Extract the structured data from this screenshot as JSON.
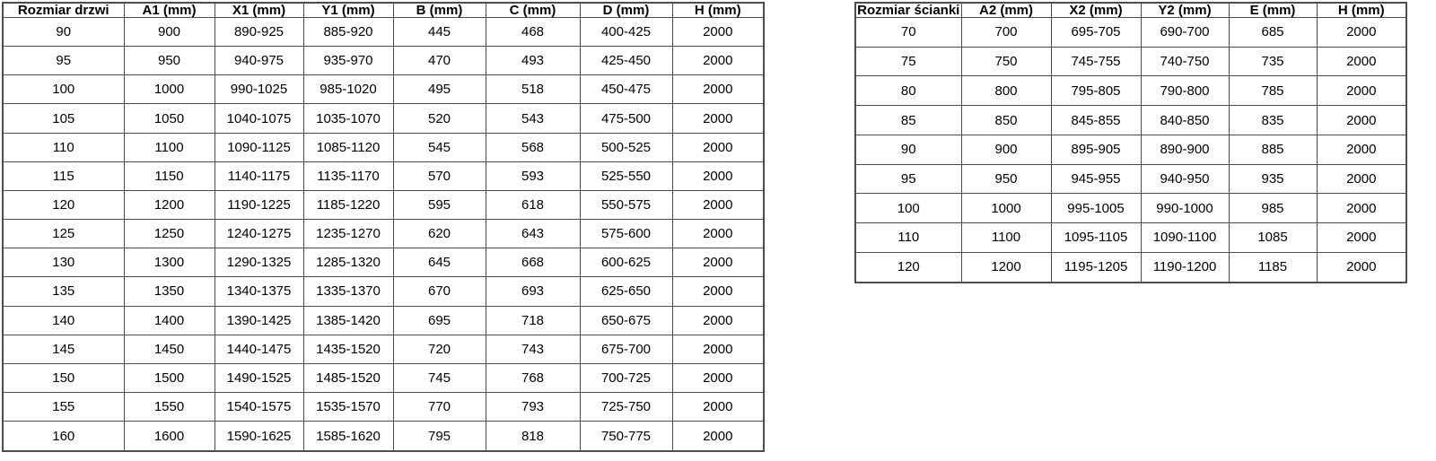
{
  "colors": {
    "border": "#4d4d4d",
    "text": "#000000",
    "background": "#ffffff"
  },
  "door_table": {
    "headers": [
      "Rozmiar drzwi",
      "A1 (mm)",
      "X1 (mm)",
      "Y1 (mm)",
      "B (mm)",
      "C (mm)",
      "D (mm)",
      "H (mm)"
    ],
    "rows": [
      [
        "90",
        "900",
        "890-925",
        "885-920",
        "445",
        "468",
        "400-425",
        "2000"
      ],
      [
        "95",
        "950",
        "940-975",
        "935-970",
        "470",
        "493",
        "425-450",
        "2000"
      ],
      [
        "100",
        "1000",
        "990-1025",
        "985-1020",
        "495",
        "518",
        "450-475",
        "2000"
      ],
      [
        "105",
        "1050",
        "1040-1075",
        "1035-1070",
        "520",
        "543",
        "475-500",
        "2000"
      ],
      [
        "110",
        "1100",
        "1090-1125",
        "1085-1120",
        "545",
        "568",
        "500-525",
        "2000"
      ],
      [
        "115",
        "1150",
        "1140-1175",
        "1135-1170",
        "570",
        "593",
        "525-550",
        "2000"
      ],
      [
        "120",
        "1200",
        "1190-1225",
        "1185-1220",
        "595",
        "618",
        "550-575",
        "2000"
      ],
      [
        "125",
        "1250",
        "1240-1275",
        "1235-1270",
        "620",
        "643",
        "575-600",
        "2000"
      ],
      [
        "130",
        "1300",
        "1290-1325",
        "1285-1320",
        "645",
        "668",
        "600-625",
        "2000"
      ],
      [
        "135",
        "1350",
        "1340-1375",
        "1335-1370",
        "670",
        "693",
        "625-650",
        "2000"
      ],
      [
        "140",
        "1400",
        "1390-1425",
        "1385-1420",
        "695",
        "718",
        "650-675",
        "2000"
      ],
      [
        "145",
        "1450",
        "1440-1475",
        "1435-1520",
        "720",
        "743",
        "675-700",
        "2000"
      ],
      [
        "150",
        "1500",
        "1490-1525",
        "1485-1520",
        "745",
        "768",
        "700-725",
        "2000"
      ],
      [
        "155",
        "1550",
        "1540-1575",
        "1535-1570",
        "770",
        "793",
        "725-750",
        "2000"
      ],
      [
        "160",
        "1600",
        "1590-1625",
        "1585-1620",
        "795",
        "818",
        "750-775",
        "2000"
      ]
    ]
  },
  "wall_table": {
    "headers": [
      "Rozmiar ścianki",
      "A2 (mm)",
      "X2 (mm)",
      "Y2 (mm)",
      "E (mm)",
      "H (mm)"
    ],
    "rows": [
      [
        "70",
        "700",
        "695-705",
        "690-700",
        "685",
        "2000"
      ],
      [
        "75",
        "750",
        "745-755",
        "740-750",
        "735",
        "2000"
      ],
      [
        "80",
        "800",
        "795-805",
        "790-800",
        "785",
        "2000"
      ],
      [
        "85",
        "850",
        "845-855",
        "840-850",
        "835",
        "2000"
      ],
      [
        "90",
        "900",
        "895-905",
        "890-900",
        "885",
        "2000"
      ],
      [
        "95",
        "950",
        "945-955",
        "940-950",
        "935",
        "2000"
      ],
      [
        "100",
        "1000",
        "995-1005",
        "990-1000",
        "985",
        "2000"
      ],
      [
        "110",
        "1100",
        "1095-1105",
        "1090-1100",
        "1085",
        "2000"
      ],
      [
        "120",
        "1200",
        "1195-1205",
        "1190-1200",
        "1185",
        "2000"
      ]
    ]
  }
}
